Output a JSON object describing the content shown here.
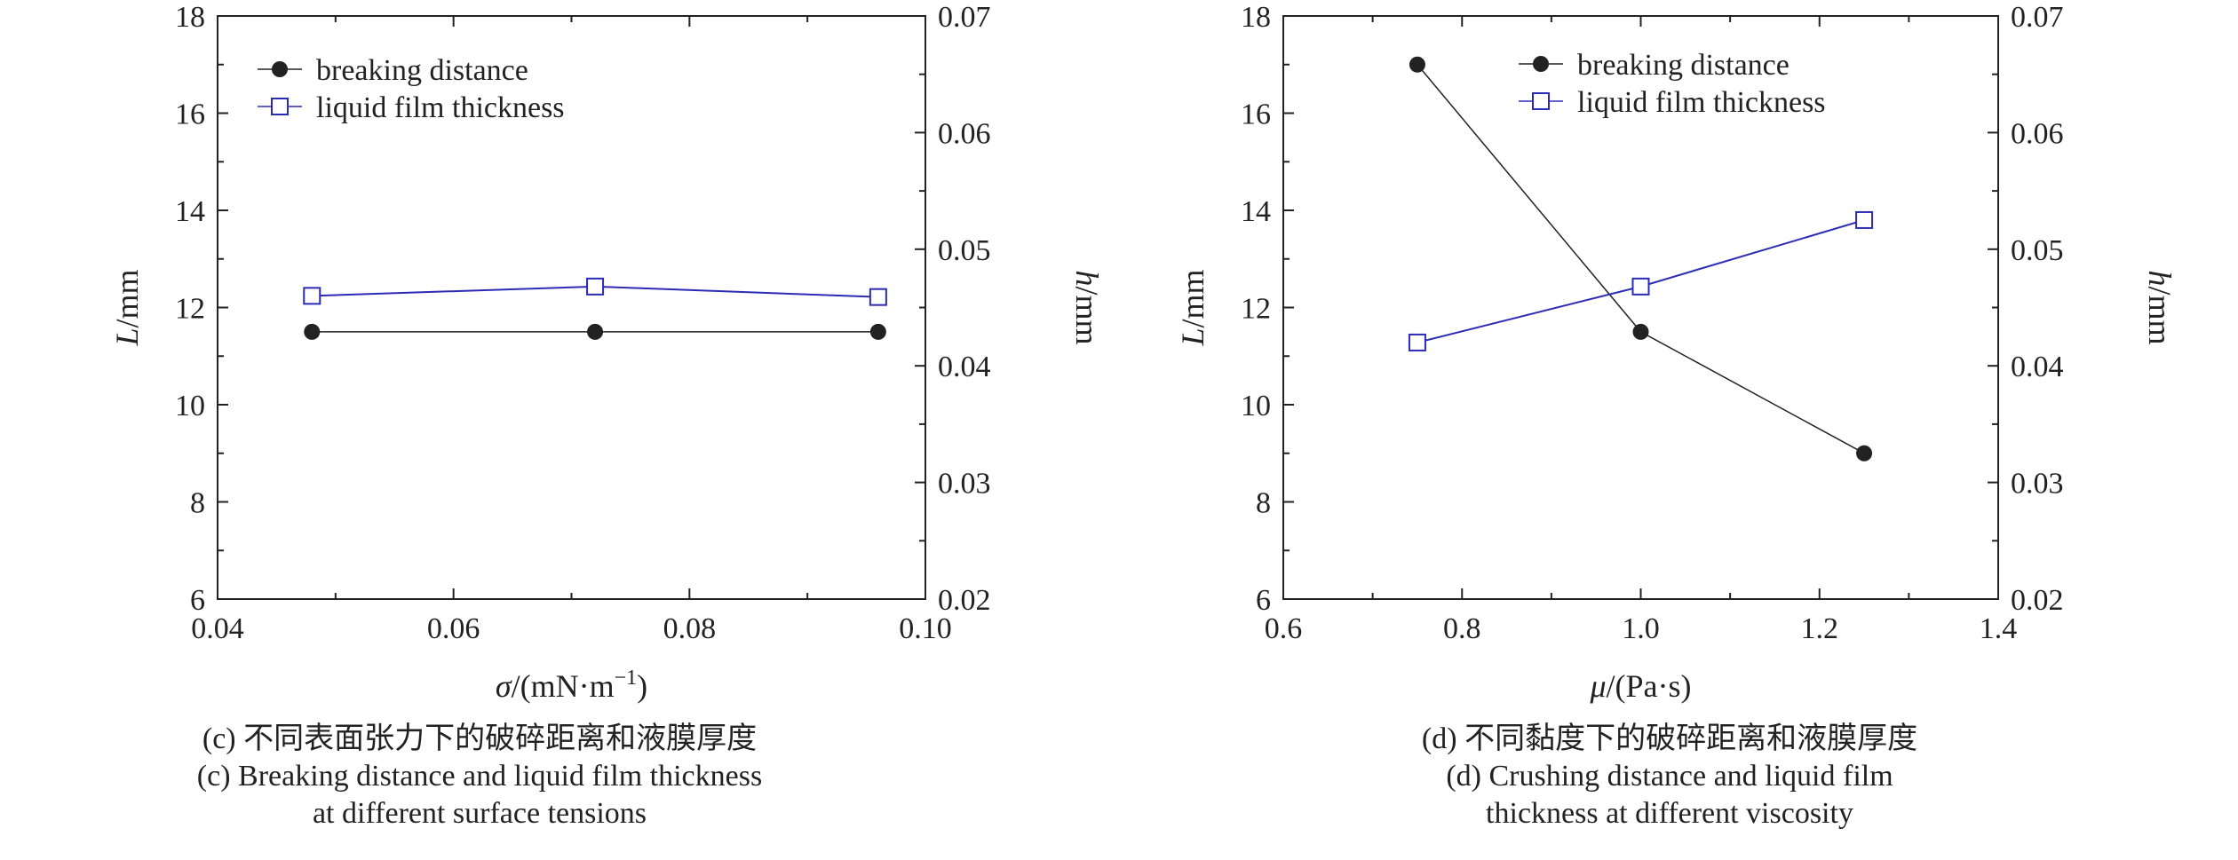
{
  "chart_data": [
    {
      "type": "line",
      "panel": "c",
      "x": [
        0.048,
        0.072,
        0.096
      ],
      "xlim": [
        0.04,
        0.1
      ],
      "xticks": [
        "0.04",
        "0.06",
        "0.08",
        "0.10"
      ],
      "xlabel_sym": "σ",
      "xlabel_unit": "/(mN·m",
      "xlabel_exp": "−1",
      "xlabel_close": ")",
      "ylabel_sym": "L",
      "ylabel_unit": "/mm",
      "ylim": [
        6,
        18
      ],
      "yticks": [
        "6",
        "8",
        "10",
        "12",
        "14",
        "16",
        "18"
      ],
      "y2label_sym": "h",
      "y2label_unit": "/mm",
      "y2lim": [
        0.02,
        0.07
      ],
      "y2ticks": [
        "0.02",
        "0.03",
        "0.04",
        "0.05",
        "0.06",
        "0.07"
      ],
      "legend_position": "top-left",
      "series": [
        {
          "name": "breaking distance",
          "axis": "left",
          "marker": "filled-circle",
          "color": "#222222",
          "values": [
            11.5,
            11.5,
            11.5
          ]
        },
        {
          "name": "liquid film thickness",
          "axis": "right",
          "marker": "open-square",
          "color": "#2b2bb5",
          "values": [
            0.046,
            0.0468,
            0.0459
          ]
        }
      ]
    },
    {
      "type": "line",
      "panel": "d",
      "x": [
        0.75,
        1.0,
        1.25
      ],
      "xlim": [
        0.6,
        1.4
      ],
      "xticks": [
        "0.6",
        "0.8",
        "1.0",
        "1.2",
        "1.4"
      ],
      "xlabel_sym": "μ",
      "xlabel_unit": "/(Pa·s)",
      "ylabel_sym": "L",
      "ylabel_unit": "/mm",
      "ylim": [
        6,
        18
      ],
      "yticks": [
        "6",
        "8",
        "10",
        "12",
        "14",
        "16",
        "18"
      ],
      "y2label_sym": "h",
      "y2label_unit": "/mm",
      "y2lim": [
        0.02,
        0.07
      ],
      "y2ticks": [
        "0.02",
        "0.03",
        "0.04",
        "0.05",
        "0.06",
        "0.07"
      ],
      "legend_position": "top-right",
      "series": [
        {
          "name": "breaking distance",
          "axis": "left",
          "marker": "filled-circle",
          "color": "#222222",
          "values": [
            17.0,
            11.5,
            9.0
          ]
        },
        {
          "name": "liquid film thickness",
          "axis": "right",
          "marker": "open-square",
          "color": "#2b2bb5",
          "values": [
            0.042,
            0.0468,
            0.0525
          ]
        }
      ]
    }
  ],
  "captions": {
    "c": {
      "line1": "(c) 不同表面张力下的破碎距离和液膜厚度",
      "line2": "(c) Breaking distance and liquid film thickness",
      "line3": "at different surface tensions"
    },
    "d": {
      "line1": "(d) 不同黏度下的破碎距离和液膜厚度",
      "line2": "(d) Crushing distance and liquid film",
      "line3": "thickness at different viscosity"
    }
  }
}
